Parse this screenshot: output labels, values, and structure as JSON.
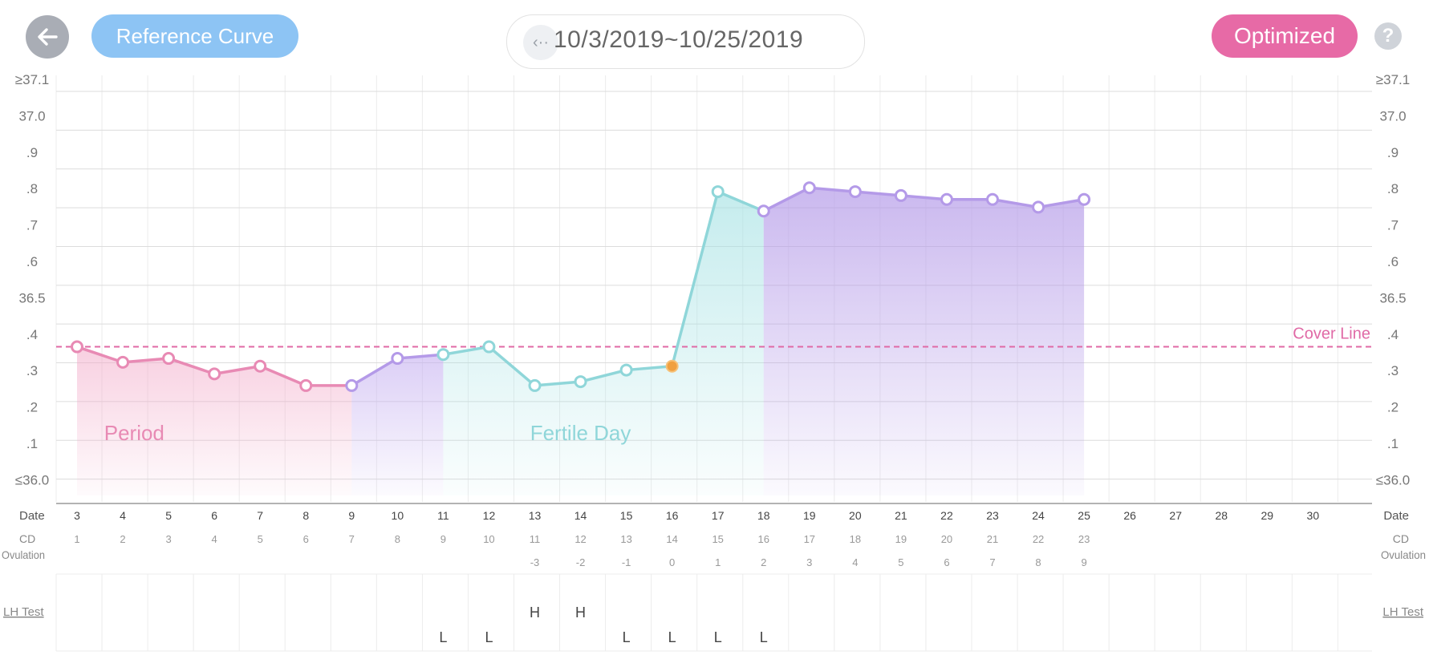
{
  "header": {
    "back_icon": "arrow-left-icon",
    "reference_curve_label": "Reference Curve",
    "date_prev_icon": "chevron-left-icon",
    "date_range": "10/3/2019~10/25/2019",
    "optimized_label": "Optimized",
    "help_label": "?"
  },
  "colors": {
    "period": "#e88ab4",
    "follicular": "#b49ae8",
    "fertile": "#8fd6d9",
    "luteal": "#b49ae8",
    "ovulation": "#f0a040",
    "cover_line": "#e06aa6"
  },
  "chart_data": {
    "type": "line",
    "ylim": [
      36.0,
      37.1
    ],
    "y_tick_labels_left": [
      "≥37.1",
      "37.0",
      ".9",
      ".8",
      ".7",
      ".6",
      "36.5",
      ".4",
      ".3",
      ".2",
      ".1",
      "≤36.0"
    ],
    "y_tick_labels_right": [
      "≥37.1",
      "37.0",
      ".9",
      ".8",
      ".7",
      ".6",
      "36.5",
      ".4",
      ".3",
      ".2",
      ".1",
      "≤36.0"
    ],
    "dates": [
      "3",
      "4",
      "5",
      "6",
      "7",
      "8",
      "9",
      "10",
      "11",
      "12",
      "13",
      "14",
      "15",
      "16",
      "17",
      "18",
      "19",
      "20",
      "21",
      "22",
      "23",
      "24",
      "25",
      "26",
      "27",
      "28",
      "29",
      "30"
    ],
    "cd": [
      "1",
      "2",
      "3",
      "4",
      "5",
      "6",
      "7",
      "8",
      "9",
      "10",
      "11",
      "12",
      "13",
      "14",
      "15",
      "16",
      "17",
      "18",
      "19",
      "20",
      "21",
      "22",
      "23"
    ],
    "ovulation": [
      "",
      "",
      "",
      "",
      "",
      "",
      "",
      "",
      "",
      "",
      "-3",
      "-2",
      "-1",
      "0",
      "1",
      "2",
      "3",
      "4",
      "5",
      "6",
      "7",
      "8",
      "9"
    ],
    "temperatures": [
      36.4,
      36.36,
      36.37,
      36.33,
      36.35,
      36.3,
      36.3,
      36.37,
      36.38,
      36.4,
      36.3,
      36.31,
      36.34,
      36.35,
      36.8,
      36.75,
      36.81,
      36.8,
      36.79,
      36.78,
      36.78,
      36.76,
      36.78
    ],
    "phases": {
      "period_end_index": 6,
      "follicular_end_index": 8,
      "fertile_end_index": 15,
      "ovulation_index": 13
    },
    "cover_line": 36.4,
    "cover_line_label": "Cover Line",
    "period_label": "Period",
    "fertile_label": "Fertile Day",
    "row_labels": {
      "date": "Date",
      "cd": "CD",
      "ovulation": "Ovulation",
      "lh_test": "LH Test"
    },
    "lh_test": [
      "",
      "",
      "",
      "",
      "",
      "",
      "",
      "",
      "L",
      "L",
      "H",
      "H",
      "L",
      "L",
      "L",
      "L",
      "",
      "",
      "",
      "",
      "",
      "",
      "",
      "",
      "",
      "",
      "",
      ""
    ]
  }
}
